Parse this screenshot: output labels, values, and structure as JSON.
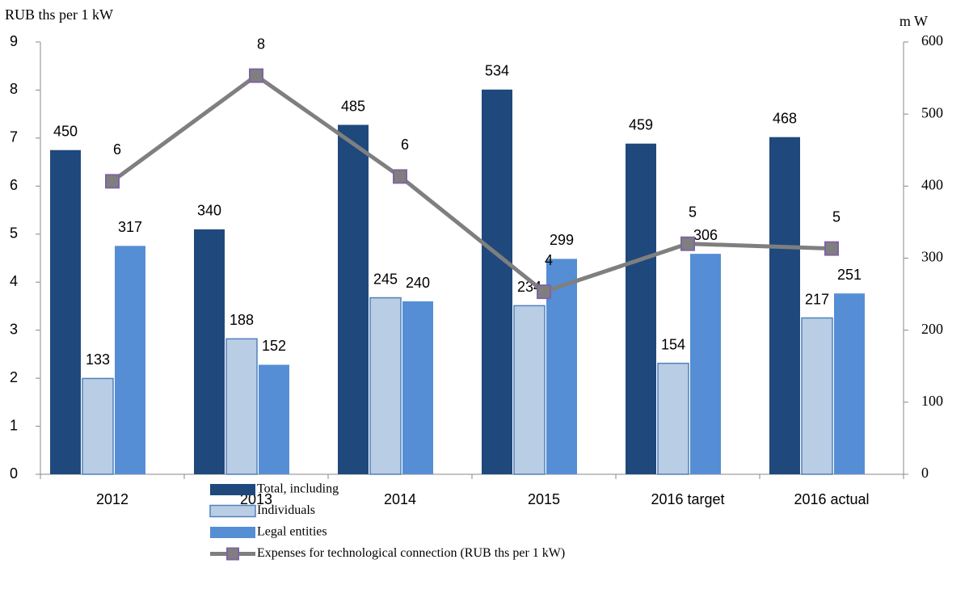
{
  "chart_data": {
    "type": "bar",
    "y_label": "RUB ths per 1 kW",
    "y2_label": "m W",
    "categories": [
      "2012",
      "2013",
      "2014",
      "2015",
      "2016 target",
      "2016 actual"
    ],
    "series": [
      {
        "name": "Total, including",
        "type": "bar",
        "axis": "y2",
        "color": "#1f497d",
        "values": [
          450,
          340,
          485,
          534,
          459,
          468
        ]
      },
      {
        "name": "Individuals",
        "type": "bar",
        "axis": "y2",
        "color": "#b9cde5",
        "values": [
          133,
          188,
          245,
          234,
          154,
          217
        ]
      },
      {
        "name": "Legal entities",
        "type": "bar",
        "axis": "y2",
        "color": "#558ed5",
        "values": [
          317,
          152,
          240,
          299,
          306,
          251
        ]
      },
      {
        "name": "Expenses for technological connection (RUB ths per 1 kW)",
        "type": "line",
        "color": "#7f7f7f",
        "marker_color": "#8064a2",
        "values": [
          6.1,
          8.3,
          6.2,
          3.8,
          4.8,
          4.7
        ],
        "value_labels": [
          "6",
          "8",
          "6",
          "4",
          "5",
          "5"
        ]
      }
    ],
    "ylim": [
      0,
      9
    ],
    "yticks": [
      0,
      1,
      2,
      3,
      4,
      5,
      6,
      7,
      8,
      9
    ],
    "y2lim": [
      0,
      600
    ],
    "y2ticks": [
      0,
      100,
      200,
      300,
      400,
      500,
      600
    ],
    "legend": "bottom"
  }
}
